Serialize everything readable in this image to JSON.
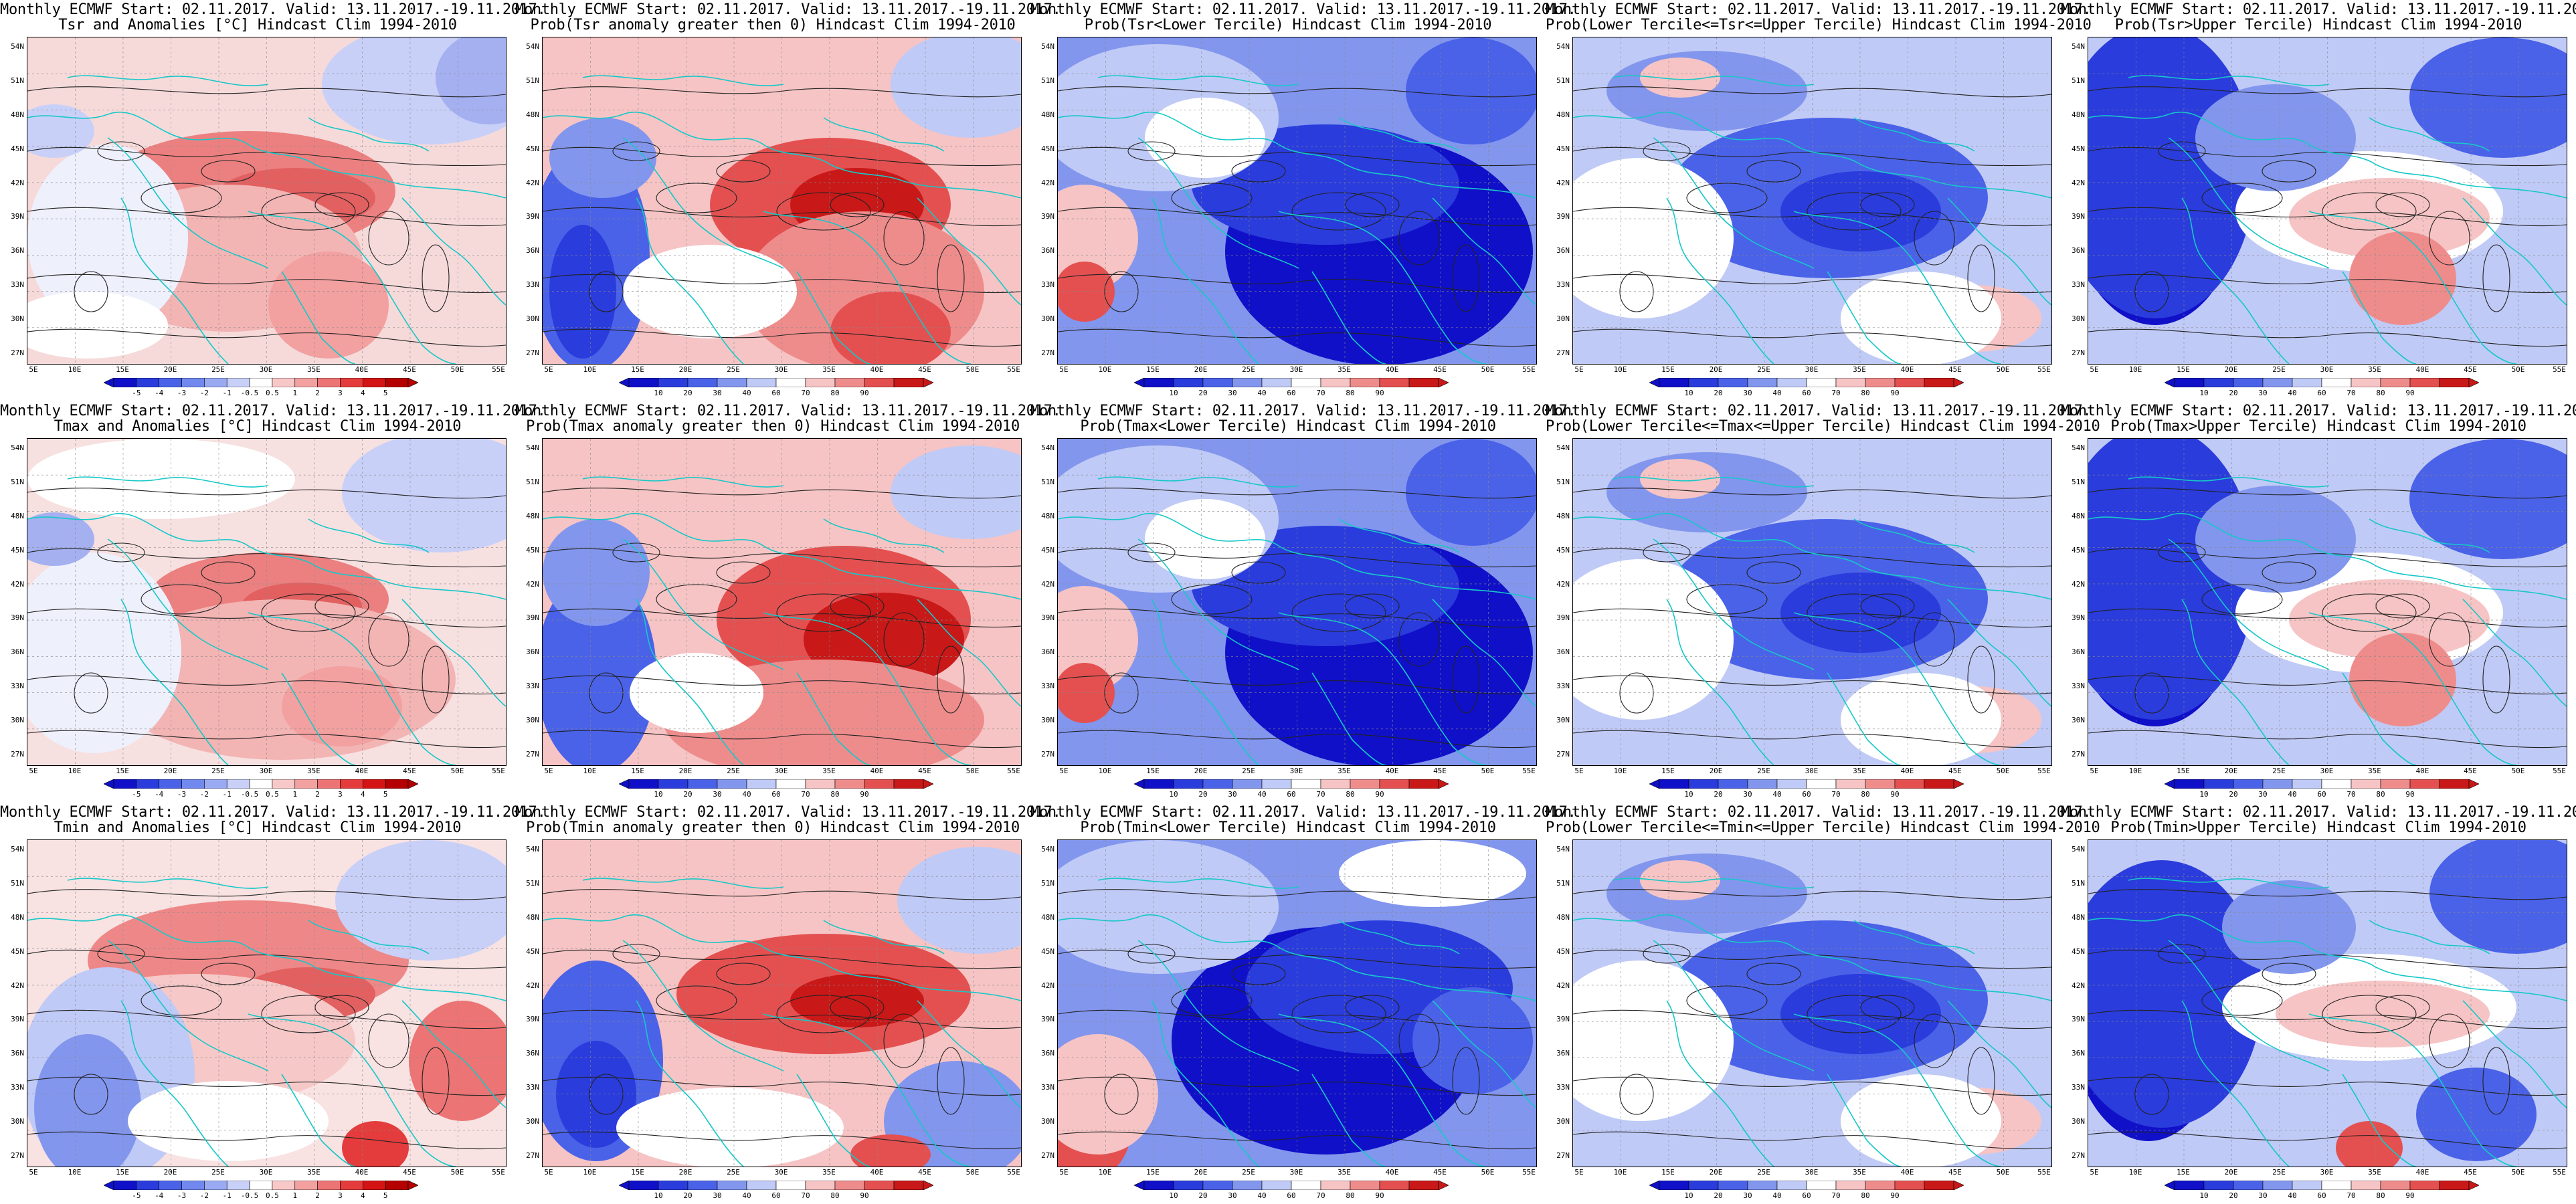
{
  "title_line1": "Monthly ECMWF Start: 02.11.2017. Valid: 13.11.2017.-19.11.2017.",
  "lat_labels": [
    "54N",
    "51N",
    "48N",
    "45N",
    "42N",
    "39N",
    "36N",
    "33N",
    "30N",
    "27N"
  ],
  "lon_labels": [
    "5E",
    "10E",
    "15E",
    "20E",
    "25E",
    "30E",
    "35E",
    "40E",
    "45E",
    "50E",
    "55E"
  ],
  "colorbars": {
    "anomaly": {
      "ticks": [
        "-5",
        "-4",
        "-3",
        "-2",
        "-1",
        "-0.5",
        "0.5",
        "1",
        "2",
        "3",
        "4",
        "5"
      ],
      "colors": [
        "#1010c8",
        "#2a3cdc",
        "#4a62e8",
        "#7188ee",
        "#9aaaf2",
        "#c8d0f8",
        "#ffffff",
        "#f8c8c8",
        "#f2a0a0",
        "#ec7474",
        "#e43c3c",
        "#d41414",
        "#b40000"
      ]
    },
    "probability": {
      "ticks": [
        "10",
        "20",
        "30",
        "40",
        "60",
        "70",
        "80",
        "90"
      ],
      "colors": [
        "#1010c8",
        "#2a3cdc",
        "#4a62e8",
        "#8296ee",
        "#c0caf6",
        "#ffffff",
        "#f6c4c4",
        "#ee8c8c",
        "#e45050",
        "#c81818"
      ]
    }
  },
  "panels": [
    {
      "title2": "Tsr and Anomalies [°C] Hindcast Clim 1994-2010",
      "cbar": "anomaly",
      "scheme": "anom_tsr"
    },
    {
      "title2": "Prob(Tsr anomaly greater then 0) Hindcast Clim 1994-2010",
      "cbar": "probability",
      "scheme": "prob_gt0_tsr"
    },
    {
      "title2": "Prob(Tsr<Lower Tercile) Hindcast Clim 1994-2010",
      "cbar": "probability",
      "scheme": "prob_lower"
    },
    {
      "title2": "Prob(Lower Tercile<=Tsr<=Upper Tercile) Hindcast Clim 1994-2010",
      "cbar": "probability",
      "scheme": "prob_middle"
    },
    {
      "title2": "Prob(Tsr>Upper Tercile) Hindcast Clim 1994-2010",
      "cbar": "probability",
      "scheme": "prob_upper"
    },
    {
      "title2": "Tmax and Anomalies [°C] Hindcast Clim 1994-2010",
      "cbar": "anomaly",
      "scheme": "anom_tmax"
    },
    {
      "title2": "Prob(Tmax anomaly greater then 0) Hindcast Clim 1994-2010",
      "cbar": "probability",
      "scheme": "prob_gt0_tmax"
    },
    {
      "title2": "Prob(Tmax<Lower Tercile) Hindcast Clim 1994-2010",
      "cbar": "probability",
      "scheme": "prob_lower"
    },
    {
      "title2": "Prob(Lower Tercile<=Tmax<=Upper Tercile) Hindcast Clim 1994-2010",
      "cbar": "probability",
      "scheme": "prob_middle"
    },
    {
      "title2": "Prob(Tmax>Upper Tercile) Hindcast Clim 1994-2010",
      "cbar": "probability",
      "scheme": "prob_upper"
    },
    {
      "title2": "Tmin and Anomalies [°C] Hindcast Clim 1994-2010",
      "cbar": "anomaly",
      "scheme": "anom_tmin"
    },
    {
      "title2": "Prob(Tmin anomaly greater then 0) Hindcast Clim 1994-2010",
      "cbar": "probability",
      "scheme": "prob_gt0_tmin"
    },
    {
      "title2": "Prob(Tmin<Lower Tercile) Hindcast Clim 1994-2010",
      "cbar": "probability",
      "scheme": "prob_lower_tmin"
    },
    {
      "title2": "Prob(Lower Tercile<=Tmin<=Upper Tercile) Hindcast Clim 1994-2010",
      "cbar": "probability",
      "scheme": "prob_middle"
    },
    {
      "title2": "Prob(Tmin>Upper Tercile) Hindcast Clim 1994-2010",
      "cbar": "probability",
      "scheme": "prob_upper_tmin"
    }
  ]
}
